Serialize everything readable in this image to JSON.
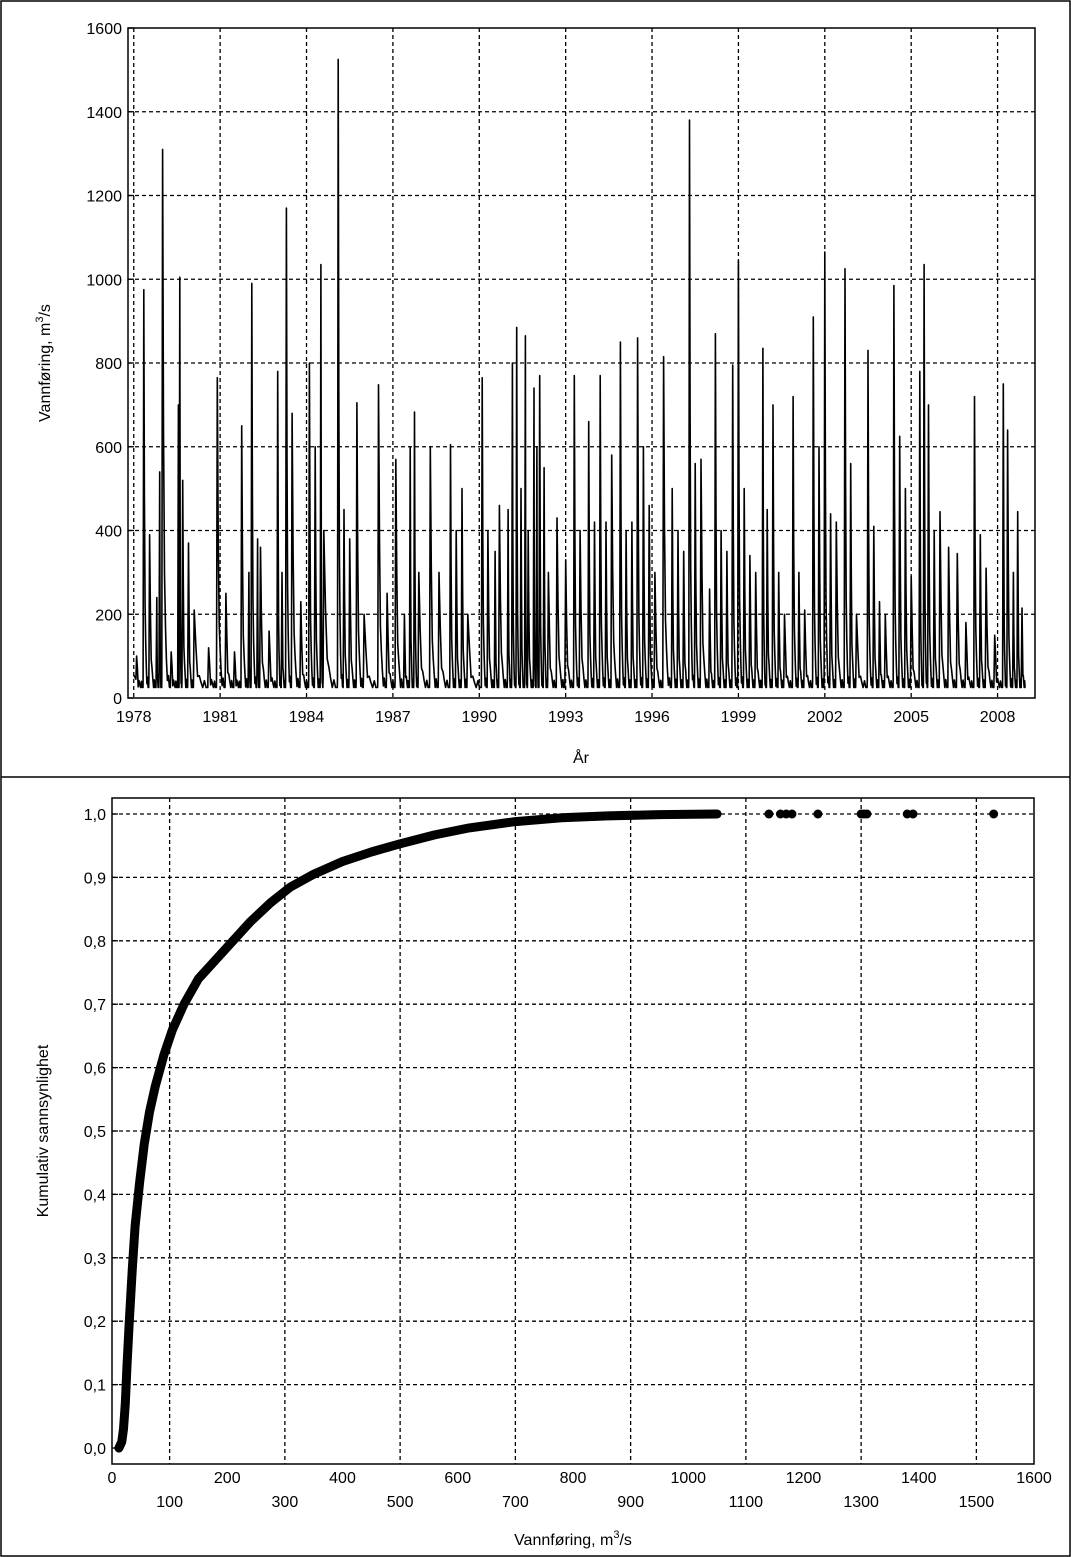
{
  "chart_data": [
    {
      "type": "line",
      "xlabel": "År",
      "ylabel": "Vannføring, m³/s",
      "ylabel_parts": [
        "Vannføring, m",
        "3",
        "/s"
      ],
      "xlim": [
        1977.8,
        2009.3
      ],
      "ylim": [
        0,
        1600
      ],
      "xticks": [
        1978,
        1981,
        1984,
        1987,
        1990,
        1993,
        1996,
        1999,
        2002,
        2005,
        2008
      ],
      "yticks": [
        0,
        200,
        400,
        600,
        800,
        1000,
        1200,
        1400,
        1600
      ],
      "grid": true,
      "baseline": 25,
      "series": [
        {
          "peaks": [
            [
              1978.1,
              100
            ],
            [
              1978.35,
              975
            ],
            [
              1978.55,
              390
            ],
            [
              1978.8,
              240
            ],
            [
              1978.9,
              540
            ],
            [
              1979.0,
              1310
            ],
            [
              1979.3,
              110
            ],
            [
              1979.55,
              700
            ],
            [
              1979.6,
              1005
            ],
            [
              1979.7,
              520
            ],
            [
              1979.9,
              370
            ],
            [
              1980.1,
              210
            ],
            [
              1980.6,
              120
            ],
            [
              1980.9,
              765
            ],
            [
              1981.2,
              250
            ],
            [
              1981.5,
              110
            ],
            [
              1981.75,
              650
            ],
            [
              1982.0,
              300
            ],
            [
              1982.1,
              990
            ],
            [
              1982.3,
              380
            ],
            [
              1982.4,
              360
            ],
            [
              1982.7,
              160
            ],
            [
              1983.0,
              780
            ],
            [
              1983.15,
              300
            ],
            [
              1983.3,
              1170
            ],
            [
              1983.5,
              680
            ],
            [
              1983.8,
              230
            ],
            [
              1984.1,
              800
            ],
            [
              1984.3,
              600
            ],
            [
              1984.5,
              1035
            ],
            [
              1984.6,
              400
            ],
            [
              1985.1,
              1525
            ],
            [
              1985.3,
              450
            ],
            [
              1985.5,
              380
            ],
            [
              1985.75,
              705
            ],
            [
              1986.0,
              200
            ],
            [
              1986.5,
              748
            ],
            [
              1986.8,
              250
            ],
            [
              1987.1,
              570
            ],
            [
              1987.4,
              200
            ],
            [
              1987.6,
              600
            ],
            [
              1987.75,
              683
            ],
            [
              1987.9,
              300
            ],
            [
              1988.3,
              600
            ],
            [
              1988.6,
              300
            ],
            [
              1989.0,
              605
            ],
            [
              1989.2,
              400
            ],
            [
              1989.4,
              500
            ],
            [
              1989.6,
              200
            ],
            [
              1990.1,
              765
            ],
            [
              1990.3,
              400
            ],
            [
              1990.55,
              350
            ],
            [
              1990.7,
              460
            ],
            [
              1991.0,
              450
            ],
            [
              1991.15,
              800
            ],
            [
              1991.3,
              885
            ],
            [
              1991.45,
              500
            ],
            [
              1991.6,
              865
            ],
            [
              1991.7,
              400
            ],
            [
              1991.9,
              740
            ],
            [
              1992.0,
              600
            ],
            [
              1992.1,
              770
            ],
            [
              1992.25,
              550
            ],
            [
              1992.4,
              300
            ],
            [
              1992.7,
              430
            ],
            [
              1993.0,
              330
            ],
            [
              1993.3,
              770
            ],
            [
              1993.5,
              400
            ],
            [
              1993.8,
              660
            ],
            [
              1994.0,
              420
            ],
            [
              1994.2,
              770
            ],
            [
              1994.4,
              420
            ],
            [
              1994.6,
              580
            ],
            [
              1994.9,
              850
            ],
            [
              1995.1,
              400
            ],
            [
              1995.3,
              420
            ],
            [
              1995.5,
              860
            ],
            [
              1995.7,
              600
            ],
            [
              1995.9,
              460
            ],
            [
              1996.1,
              300
            ],
            [
              1996.4,
              815
            ],
            [
              1996.7,
              500
            ],
            [
              1996.9,
              400
            ],
            [
              1997.1,
              350
            ],
            [
              1997.3,
              1380
            ],
            [
              1997.5,
              560
            ],
            [
              1997.7,
              570
            ],
            [
              1998.0,
              260
            ],
            [
              1998.2,
              870
            ],
            [
              1998.4,
              400
            ],
            [
              1998.6,
              350
            ],
            [
              1998.8,
              795
            ],
            [
              1999.0,
              1045
            ],
            [
              1999.2,
              500
            ],
            [
              1999.4,
              340
            ],
            [
              1999.6,
              300
            ],
            [
              1999.85,
              835
            ],
            [
              2000.0,
              450
            ],
            [
              2000.2,
              700
            ],
            [
              2000.4,
              300
            ],
            [
              2000.6,
              200
            ],
            [
              2000.9,
              720
            ],
            [
              2001.1,
              300
            ],
            [
              2001.3,
              210
            ],
            [
              2001.6,
              910
            ],
            [
              2001.8,
              600
            ],
            [
              2002.0,
              1065
            ],
            [
              2002.2,
              440
            ],
            [
              2002.4,
              420
            ],
            [
              2002.7,
              1025
            ],
            [
              2002.9,
              560
            ],
            [
              2003.1,
              200
            ],
            [
              2003.5,
              830
            ],
            [
              2003.7,
              410
            ],
            [
              2003.9,
              230
            ],
            [
              2004.1,
              200
            ],
            [
              2004.4,
              985
            ],
            [
              2004.6,
              625
            ],
            [
              2004.8,
              500
            ],
            [
              2005.0,
              290
            ],
            [
              2005.3,
              780
            ],
            [
              2005.45,
              1035
            ],
            [
              2005.6,
              700
            ],
            [
              2005.8,
              400
            ],
            [
              2006.0,
              445
            ],
            [
              2006.3,
              360
            ],
            [
              2006.6,
              345
            ],
            [
              2006.9,
              180
            ],
            [
              2007.2,
              720
            ],
            [
              2007.4,
              390
            ],
            [
              2007.6,
              310
            ],
            [
              2007.9,
              150
            ],
            [
              2008.2,
              750
            ],
            [
              2008.35,
              640
            ],
            [
              2008.55,
              300
            ],
            [
              2008.7,
              445
            ],
            [
              2008.85,
              215
            ]
          ]
        }
      ]
    },
    {
      "type": "scatter",
      "xlabel": "Vannføring, m³/s",
      "xlabel_parts": [
        "Vannføring, m",
        "3",
        "/s"
      ],
      "ylabel": "Kumulativ sannsynlighet",
      "xlim": [
        0,
        1600
      ],
      "ylim": [
        0.0,
        1.0
      ],
      "xticks_top": [
        0,
        200,
        400,
        600,
        800,
        1000,
        1200,
        1400,
        1600
      ],
      "xticks_bottom": [
        100,
        300,
        500,
        700,
        900,
        1100,
        1300,
        1500
      ],
      "yticks": [
        0.0,
        0.1,
        0.2,
        0.3,
        0.4,
        0.5,
        0.6,
        0.7,
        0.8,
        0.9,
        1.0
      ],
      "ytick_labels": [
        "0,0",
        "0,1",
        "0,2",
        "0,3",
        "0,4",
        "0,5",
        "0,6",
        "0,7",
        "0,8",
        "0,9",
        "1,0"
      ],
      "xtick_labels_top": [
        "0",
        "200",
        "400",
        "600",
        "800",
        "1000",
        "1200",
        "1400",
        "1600"
      ],
      "xtick_labels_bottom": [
        "100",
        "300",
        "500",
        "700",
        "900",
        "1100",
        "1300",
        "1500"
      ],
      "grid": true,
      "series": [
        {
          "points": [
            [
              12,
              0.0
            ],
            [
              17,
              0.01
            ],
            [
              20,
              0.03
            ],
            [
              23,
              0.07
            ],
            [
              26,
              0.13
            ],
            [
              30,
              0.2
            ],
            [
              35,
              0.28
            ],
            [
              40,
              0.35
            ],
            [
              48,
              0.42
            ],
            [
              56,
              0.48
            ],
            [
              65,
              0.53
            ],
            [
              75,
              0.57
            ],
            [
              90,
              0.62
            ],
            [
              105,
              0.66
            ],
            [
              125,
              0.7
            ],
            [
              150,
              0.74
            ],
            [
              180,
              0.77
            ],
            [
              210,
              0.8
            ],
            [
              240,
              0.83
            ],
            [
              275,
              0.86
            ],
            [
              310,
              0.885
            ],
            [
              350,
              0.905
            ],
            [
              400,
              0.925
            ],
            [
              450,
              0.94
            ],
            [
              500,
              0.953
            ],
            [
              560,
              0.967
            ],
            [
              620,
              0.978
            ],
            [
              700,
              0.988
            ],
            [
              780,
              0.994
            ],
            [
              860,
              0.997
            ],
            [
              950,
              0.999
            ],
            [
              1050,
              1.0
            ]
          ],
          "outliers": [
            1140,
            1160,
            1170,
            1180,
            1225,
            1300,
            1305,
            1310,
            1380,
            1390,
            1530
          ]
        }
      ]
    }
  ]
}
